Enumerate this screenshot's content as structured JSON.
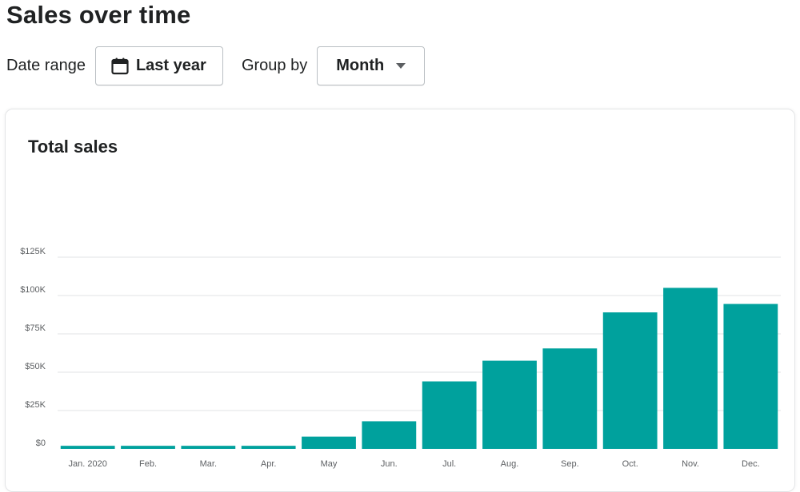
{
  "page": {
    "title": "Sales over time"
  },
  "filters": {
    "date_range_label": "Date range",
    "date_range_value": "Last year",
    "group_by_label": "Group by",
    "group_by_value": "Month"
  },
  "card": {
    "title": "Total sales"
  },
  "colors": {
    "bar": "#00a19d",
    "grid": "#e1e3e5",
    "tick": "#5c5f62"
  },
  "chart_data": {
    "type": "bar",
    "title": "Total sales",
    "categories": [
      "Jan. 2020",
      "Feb.",
      "Mar.",
      "Apr.",
      "May",
      "Jun.",
      "Jul.",
      "Aug.",
      "Sep.",
      "Oct.",
      "Nov.",
      "Dec."
    ],
    "values": [
      2000,
      2000,
      2000,
      2000,
      8000,
      18000,
      44000,
      57500,
      65500,
      89000,
      105000,
      94500
    ],
    "ylim": [
      0,
      125000
    ],
    "y_ticks": [
      {
        "value": 0,
        "label": "$0"
      },
      {
        "value": 25000,
        "label": "$25K"
      },
      {
        "value": 50000,
        "label": "$50K"
      },
      {
        "value": 75000,
        "label": "$75K"
      },
      {
        "value": 100000,
        "label": "$100K"
      },
      {
        "value": 125000,
        "label": "$125K"
      }
    ],
    "grid": true,
    "xlabel": "",
    "ylabel": ""
  }
}
